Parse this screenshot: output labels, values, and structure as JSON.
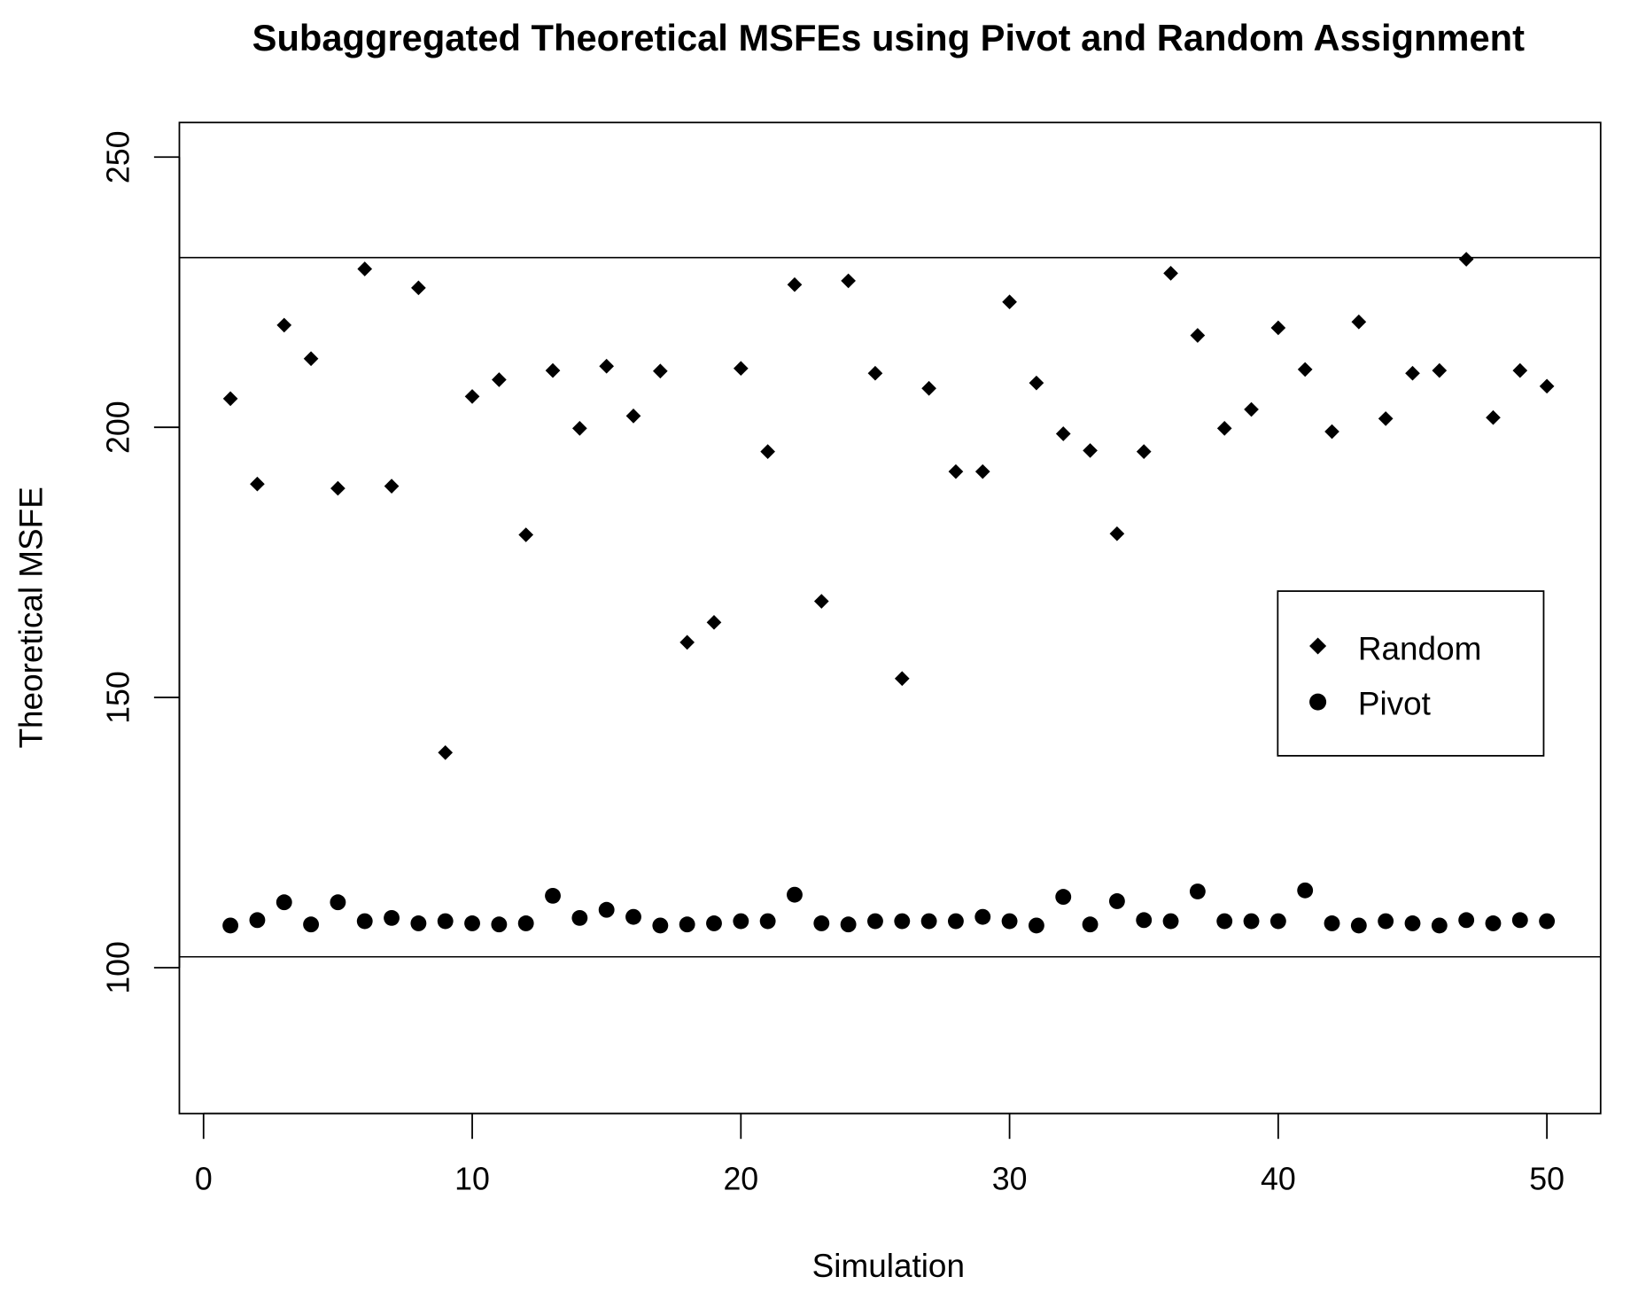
{
  "chart_data": {
    "type": "scatter",
    "title": "Subaggregated Theoretical MSFEs using Pivot and Random Assignment",
    "xlabel": "Simulation",
    "ylabel": "Theoretical MSFE",
    "xlim": [
      -0.9,
      52
    ],
    "ylim": [
      73,
      256.4
    ],
    "xticks": [
      0,
      10,
      20,
      30,
      40,
      50
    ],
    "yticks": [
      100,
      150,
      200,
      250
    ],
    "xtick_labels": [
      "0",
      "10",
      "20",
      "30",
      "40",
      "50"
    ],
    "ytick_labels": [
      "100",
      "150",
      "200",
      "250"
    ],
    "grid": false,
    "legend_position": "right",
    "hlines": [
      231.4,
      102.0
    ],
    "x": [
      1,
      2,
      3,
      4,
      5,
      6,
      7,
      8,
      9,
      10,
      11,
      12,
      13,
      14,
      15,
      16,
      17,
      18,
      19,
      20,
      21,
      22,
      23,
      24,
      25,
      26,
      27,
      28,
      29,
      30,
      31,
      32,
      33,
      34,
      35,
      36,
      37,
      38,
      39,
      40,
      41,
      42,
      43,
      44,
      45,
      46,
      47,
      48,
      49,
      50
    ],
    "series": [
      {
        "name": "Random",
        "marker": "diamond",
        "color": "#000000",
        "values": [
          205.3,
          189.5,
          218.9,
          212.7,
          188.7,
          229.3,
          189.1,
          225.8,
          139.8,
          205.7,
          208.8,
          180.1,
          210.5,
          199.8,
          211.3,
          202.1,
          210.4,
          160.2,
          163.9,
          210.9,
          195.5,
          226.4,
          167.8,
          227.1,
          210.0,
          153.5,
          207.2,
          191.8,
          191.8,
          223.2,
          208.2,
          198.8,
          195.7,
          180.3,
          195.5,
          228.5,
          217.0,
          199.8,
          203.3,
          218.4,
          210.7,
          199.2,
          219.5,
          201.6,
          210.0,
          210.5,
          231.1,
          201.8,
          210.5,
          207.6
        ]
      },
      {
        "name": "Pivot",
        "marker": "circle",
        "color": "#000000",
        "values": [
          107.8,
          108.8,
          112.1,
          108.0,
          112.1,
          108.6,
          109.2,
          108.2,
          108.6,
          108.2,
          108.0,
          108.2,
          113.3,
          109.2,
          110.7,
          109.4,
          107.8,
          108.0,
          108.2,
          108.6,
          108.6,
          113.5,
          108.2,
          108.0,
          108.6,
          108.6,
          108.6,
          108.6,
          109.4,
          108.6,
          107.8,
          113.1,
          108.0,
          112.3,
          108.8,
          108.6,
          114.1,
          108.6,
          108.6,
          108.6,
          114.3,
          108.2,
          107.8,
          108.6,
          108.2,
          107.8,
          108.8,
          108.2,
          108.8,
          108.6
        ]
      }
    ]
  }
}
